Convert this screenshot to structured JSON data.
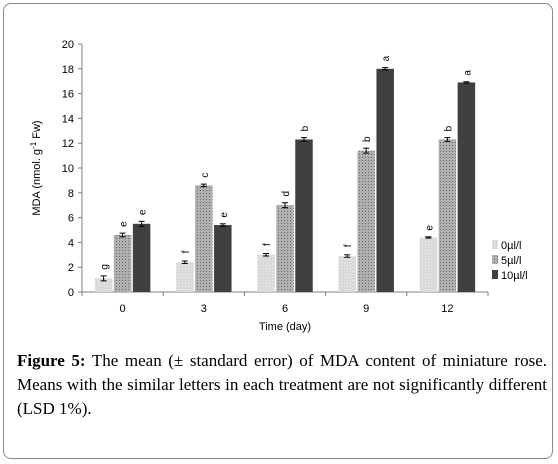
{
  "chart_data": {
    "type": "bar",
    "categories": [
      "0",
      "3",
      "6",
      "9",
      "12"
    ],
    "series": [
      {
        "name": "0µl/l",
        "color": "#d9d9d9",
        "values": [
          1.1,
          2.4,
          3.0,
          2.9,
          4.4
        ],
        "errors": [
          0.2,
          0.1,
          0.1,
          0.1,
          0.05
        ],
        "letters": [
          "g",
          "f",
          "f",
          "f",
          "e"
        ]
      },
      {
        "name": "5µl/l",
        "color": "#b0b0b0",
        "values": [
          4.6,
          8.6,
          7.0,
          11.4,
          12.3
        ],
        "errors": [
          0.15,
          0.1,
          0.2,
          0.2,
          0.15
        ],
        "letters": [
          "e",
          "c",
          "d",
          "b",
          "b"
        ]
      },
      {
        "name": "10µl/l",
        "color": "#404040",
        "values": [
          5.5,
          5.4,
          12.3,
          18.0,
          16.9
        ],
        "errors": [
          0.2,
          0.1,
          0.15,
          0.1,
          0.05
        ],
        "letters": [
          "e",
          "e",
          "b",
          "a",
          "a"
        ]
      }
    ],
    "xlabel": "Time (day)",
    "ylabel": "MDA (nmol. g",
    "ylabel_sup": "-1",
    "ylabel_tail": " Fw)",
    "ylim": [
      0,
      20
    ],
    "yticks": [
      "0",
      "2",
      "4",
      "6",
      "8",
      "10",
      "12",
      "14",
      "16",
      "18",
      "20"
    ],
    "legend_position": "right",
    "grid": false
  },
  "caption": {
    "label": "Figure 5:",
    "text": " The mean (± standard error) of MDA content of miniature rose. Means with the similar letters in each treatment are not significantly different (LSD 1%)."
  }
}
